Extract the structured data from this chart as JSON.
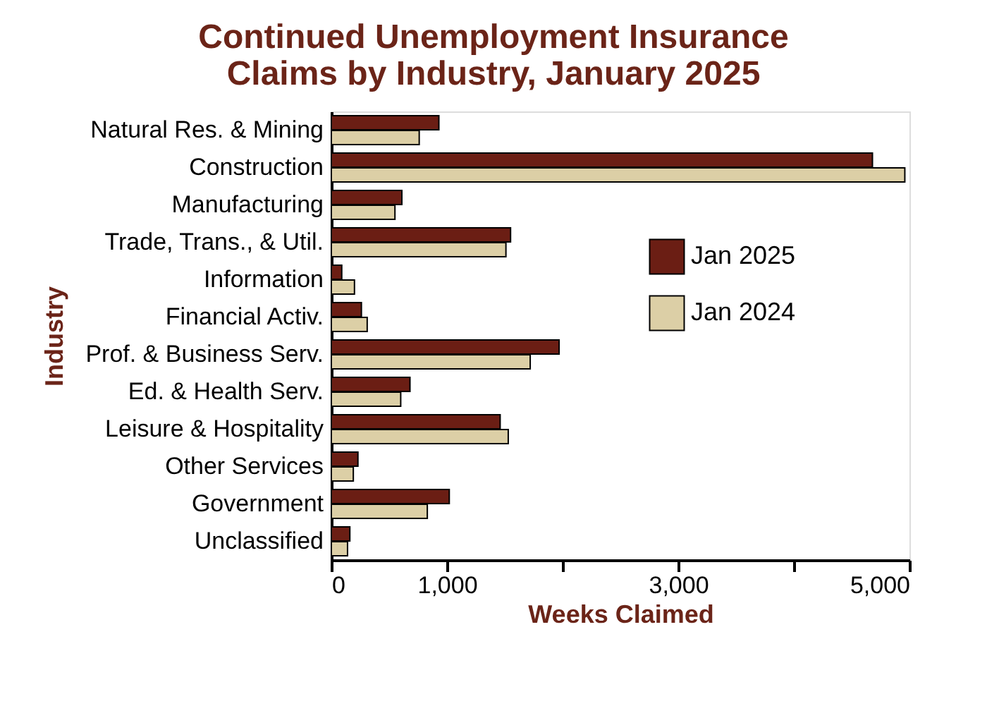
{
  "chart_data": {
    "type": "bar",
    "orientation": "horizontal",
    "title": "Continued Unemployment Insurance Claims by Industry, January 2025",
    "xlabel": "Weeks Claimed",
    "ylabel": "Industry",
    "categories": [
      "Natural Res. & Mining",
      "Construction",
      "Manufacturing",
      "Trade, Trans., & Util.",
      "Information",
      "Financial Activ.",
      "Prof. & Business Serv.",
      "Ed. & Health Serv.",
      "Leisure & Hospitality",
      "Other Services",
      "Government",
      "Unclassified"
    ],
    "series": [
      {
        "name": "Jan 2025",
        "color": "#6b1e14",
        "values": [
          930,
          4680,
          610,
          1550,
          90,
          260,
          1970,
          680,
          1460,
          230,
          1020,
          160
        ]
      },
      {
        "name": "Jan 2024",
        "color": "#dccfa6",
        "values": [
          760,
          4960,
          550,
          1510,
          200,
          310,
          1720,
          600,
          1530,
          190,
          830,
          140
        ]
      }
    ],
    "xlim": [
      0,
      5000
    ],
    "xticks": [
      0,
      {
        "value": 1000,
        "label": "1,000"
      },
      {
        "value": 2000,
        "label": null
      },
      {
        "value": 3000,
        "label": "3,000"
      },
      {
        "value": 4000,
        "label": null
      },
      {
        "value": 5000,
        "label": "5,000"
      }
    ],
    "legend": "right",
    "grid": false
  }
}
